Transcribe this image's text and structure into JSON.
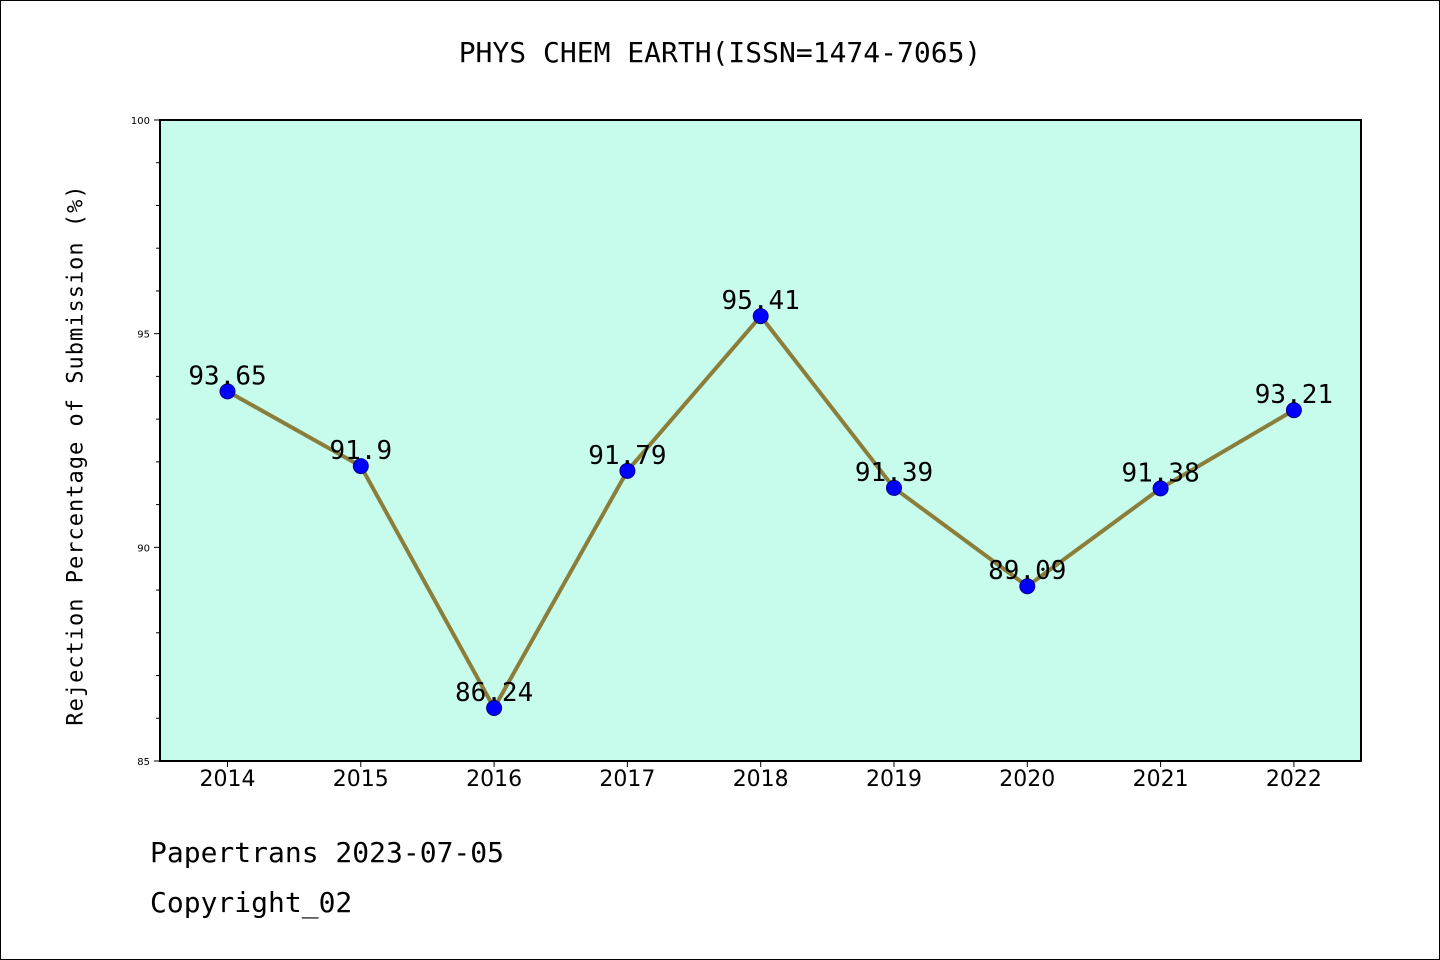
{
  "chart_data": {
    "type": "line",
    "title": "PHYS CHEM EARTH(ISSN=1474-7065)",
    "xlabel": "",
    "ylabel": "Rejection Percentage of Submission (%)",
    "categories": [
      "2014",
      "2015",
      "2016",
      "2017",
      "2018",
      "2019",
      "2020",
      "2021",
      "2022"
    ],
    "series": [
      {
        "values": [
          93.65,
          91.9,
          86.24,
          91.79,
          95.41,
          91.39,
          89.09,
          91.38,
          93.21
        ]
      }
    ],
    "data_labels": [
      "93.65",
      "91.9",
      "86.24",
      "91.79",
      "95.41",
      "91.39",
      "89.09",
      "91.38",
      "93.21"
    ],
    "ylim": [
      85,
      100
    ],
    "yticks": [
      "85",
      "90",
      "95",
      "100"
    ],
    "grid": false,
    "colors": {
      "plot_bg": "#c7fcec",
      "line": "#8b7d3a",
      "marker": "#0000ff"
    }
  },
  "footer": {
    "line1": "Papertrans 2023-07-05",
    "line2": "Copyright_02"
  }
}
